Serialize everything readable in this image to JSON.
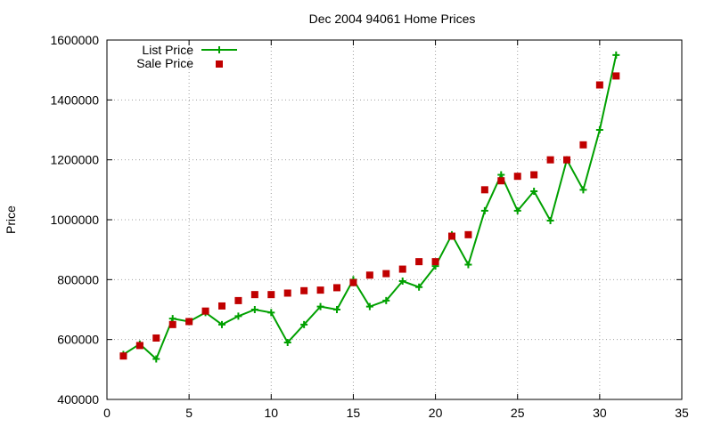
{
  "chart_data": {
    "type": "scatter",
    "title": "Dec 2004 94061 Home Prices",
    "xlabel": "",
    "ylabel": "Price",
    "xlim": [
      0,
      35
    ],
    "ylim": [
      400000,
      1600000
    ],
    "xticks": [
      "0",
      "5",
      "10",
      "15",
      "20",
      "25",
      "30",
      "35"
    ],
    "yticks": [
      "400000",
      "600000",
      "800000",
      "1000000",
      "1200000",
      "1400000",
      "1600000"
    ],
    "grid": true,
    "legend_position": "top-left",
    "x": [
      1,
      2,
      3,
      4,
      5,
      6,
      7,
      8,
      9,
      10,
      11,
      12,
      13,
      14,
      15,
      16,
      17,
      18,
      19,
      20,
      21,
      22,
      23,
      24,
      25,
      26,
      27,
      28,
      29,
      30,
      31
    ],
    "series": [
      {
        "name": "List Price",
        "style": "line-with-plus-markers",
        "color": "#00a000",
        "values": [
          550000,
          585000,
          535000,
          670000,
          660000,
          690000,
          650000,
          678000,
          700000,
          690000,
          590000,
          650000,
          710000,
          700000,
          800000,
          710000,
          730000,
          795000,
          775000,
          845000,
          950000,
          850000,
          1030000,
          1150000,
          1030000,
          1095000,
          997000,
          1200000,
          1100000,
          1300000,
          1550000
        ]
      },
      {
        "name": "Sale Price",
        "style": "square-markers",
        "color": "#c00000",
        "values": [
          545000,
          580000,
          605000,
          650000,
          660000,
          695000,
          712000,
          730000,
          750000,
          750000,
          755000,
          763000,
          765000,
          773000,
          790000,
          815000,
          820000,
          835000,
          860000,
          860000,
          945000,
          950000,
          1100000,
          1130000,
          1145000,
          1150000,
          1200000,
          1200000,
          1250000,
          1450000,
          1480000
        ]
      }
    ]
  }
}
